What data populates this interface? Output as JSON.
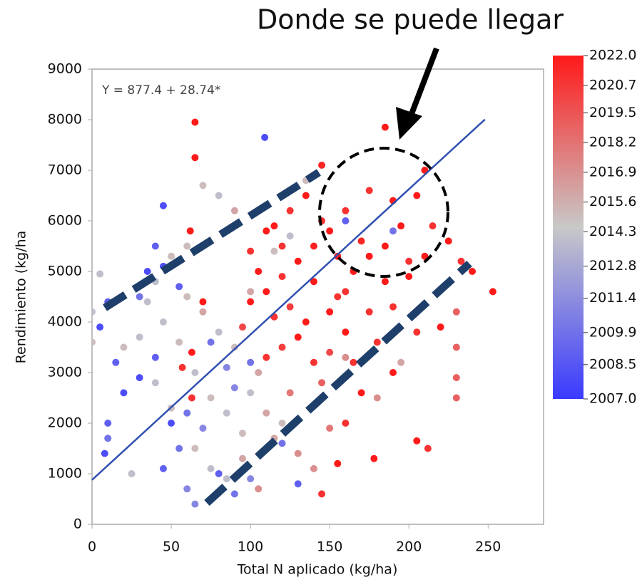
{
  "chart_data": {
    "type": "scatter",
    "title": "Donde se puede llegar",
    "annotation": "Y = 877.4 + 28.74*",
    "x_label": "Total N aplicado (kg/ha)",
    "y_label": "Rendimiento (kg/ha",
    "xlim": [
      0,
      285
    ],
    "ylim": [
      0,
      9000
    ],
    "xticks": [
      0,
      50,
      100,
      150,
      200,
      250
    ],
    "yticks": [
      0,
      1000,
      2000,
      3000,
      4000,
      5000,
      6000,
      7000,
      8000,
      9000
    ],
    "grid": false,
    "trend": {
      "intercept": 877.4,
      "slope": 28.74,
      "xmax": 248,
      "color": "#3050b0"
    },
    "colormap": [
      "#3a3aff",
      "#c8c8c8",
      "#ff1a1a"
    ],
    "clim": [
      2007,
      2022
    ],
    "colorbar_ticks": [
      {
        "value": 2022,
        "label": "2022.0"
      },
      {
        "value": 2020.7,
        "label": "2020.7"
      },
      {
        "value": 2019.5,
        "label": "2019.5"
      },
      {
        "value": 2018.2,
        "label": "2018.2"
      },
      {
        "value": 2016.9,
        "label": "2016.9"
      },
      {
        "value": 2015.6,
        "label": "2015.6"
      },
      {
        "value": 2014.3,
        "label": "2014.3"
      },
      {
        "value": 2012.8,
        "label": "2012.8"
      },
      {
        "value": 2011.4,
        "label": "2011.4"
      },
      {
        "value": 2009.9,
        "label": "2009.9"
      },
      {
        "value": 2008.5,
        "label": "2008.5"
      },
      {
        "value": 2007,
        "label": "2007.0"
      }
    ],
    "x": [
      65,
      65,
      145,
      185,
      190,
      175,
      160,
      150,
      140,
      130,
      120,
      110,
      125,
      135,
      155,
      165,
      170,
      195,
      205,
      210,
      200,
      185,
      175,
      160,
      150,
      140,
      130,
      115,
      105,
      100,
      115,
      125,
      135,
      145,
      155,
      120,
      110,
      100,
      95,
      180,
      190,
      205,
      220,
      230,
      230,
      230,
      230,
      253,
      212,
      205,
      178,
      145,
      155,
      160,
      170,
      63,
      63,
      57,
      70,
      62,
      110,
      120,
      140,
      150,
      160,
      175,
      185,
      190,
      200,
      210,
      215,
      225,
      233,
      240,
      165,
      145,
      125,
      40,
      50,
      60,
      70,
      80,
      90,
      45,
      55,
      65,
      75,
      85,
      95,
      100,
      105,
      90,
      80,
      70,
      60,
      30,
      20,
      0,
      0,
      25,
      65,
      75,
      85,
      95,
      105,
      110,
      115,
      120,
      40,
      50,
      35,
      5,
      130,
      140,
      150,
      160,
      180,
      195,
      100,
      115,
      125,
      135,
      45,
      109,
      40,
      35,
      30,
      10,
      5,
      15,
      20,
      10,
      10,
      8,
      30,
      40,
      50,
      55,
      45,
      60,
      65,
      80,
      90,
      100,
      120,
      130,
      100,
      90,
      75,
      55,
      45,
      160,
      190,
      70,
      85,
      60
    ],
    "values": [
      7950,
      7250,
      7100,
      7850,
      6400,
      6600,
      6200,
      5800,
      5500,
      5200,
      4900,
      4600,
      4300,
      4000,
      4500,
      5000,
      5600,
      5900,
      6500,
      7000,
      5200,
      4800,
      4200,
      3800,
      3400,
      3200,
      3700,
      4100,
      5000,
      5400,
      5900,
      6200,
      6500,
      6000,
      5300,
      3500,
      3300,
      4400,
      3900,
      3600,
      3000,
      3800,
      3900,
      4200,
      3500,
      2900,
      2500,
      4600,
      1500,
      1650,
      1300,
      600,
      1200,
      2000,
      2600,
      3400,
      2500,
      3100,
      4400,
      5800,
      5800,
      5500,
      4800,
      4200,
      4600,
      5300,
      5500,
      4300,
      4900,
      5300,
      5900,
      5600,
      5200,
      5000,
      3200,
      2800,
      2600,
      4800,
      5300,
      5500,
      6700,
      6500,
      6200,
      4000,
      3600,
      3000,
      2500,
      2200,
      1800,
      2600,
      3000,
      3500,
      3800,
      4200,
      4500,
      3700,
      3500,
      3600,
      4200,
      1000,
      1500,
      1100,
      900,
      1300,
      700,
      2200,
      1700,
      2000,
      2800,
      2300,
      4400,
      4950,
      1400,
      1100,
      1900,
      3300,
      2500,
      3200,
      4600,
      5400,
      5700,
      6800,
      6300,
      7650,
      5500,
      5000,
      4500,
      4400,
      3900,
      3200,
      2600,
      2000,
      1700,
      1400,
      2900,
      3300,
      2000,
      1500,
      1100,
      700,
      400,
      1000,
      600,
      900,
      1600,
      800,
      3200,
      2700,
      3600,
      4700,
      5100,
      6000,
      5800,
      1900,
      3100,
      2200
    ],
    "color_values": [
      2022,
      2022,
      2021.5,
      2022,
      2022,
      2021,
      2021,
      2022,
      2021.8,
      2022,
      2021,
      2022,
      2020.5,
      2022,
      2021,
      2022,
      2021.5,
      2022,
      2022,
      2022,
      2021,
      2022,
      2021,
      2022,
      2020,
      2021,
      2022,
      2021,
      2022,
      2021,
      2022,
      2021,
      2022,
      2021,
      2022,
      2020.5,
      2021,
      2022,
      2020,
      2021,
      2022,
      2021,
      2022,
      2019,
      2019,
      2019,
      2019,
      2022,
      2021,
      2022,
      2022,
      2021,
      2022,
      2021,
      2022,
      2022,
      2021,
      2021,
      2022,
      2022,
      2022,
      2021,
      2022,
      2022,
      2021,
      2022,
      2022,
      2021,
      2022,
      2022,
      2021,
      2022,
      2021,
      2022,
      2021,
      2019,
      2018,
      2014,
      2015,
      2015,
      2015,
      2014,
      2016,
      2014,
      2015,
      2014,
      2015,
      2014,
      2015,
      2014,
      2016,
      2015,
      2014,
      2016,
      2015,
      2014,
      2015,
      2015,
      2014,
      2014,
      2015,
      2014,
      2014,
      2016,
      2017,
      2016,
      2016,
      2015,
      2014,
      2015,
      2014,
      2014,
      2017,
      2017,
      2018,
      2017,
      2017,
      2016,
      2016,
      2015,
      2014,
      2015,
      2008,
      2008,
      2009,
      2008,
      2010,
      2009,
      2008,
      2009,
      2008,
      2009,
      2010,
      2008,
      2008,
      2009,
      2008,
      2010,
      2009,
      2011,
      2011,
      2009,
      2010,
      2011,
      2010,
      2009,
      2010,
      2011,
      2010,
      2009,
      2008,
      2009,
      2010,
      2011,
      2011,
      2010
    ]
  }
}
